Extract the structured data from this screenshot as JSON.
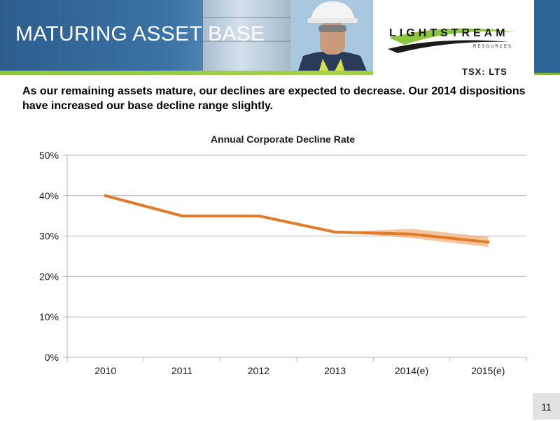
{
  "header": {
    "title": "MATURING ASSET BASE",
    "logo_text": "LIGHTSTREAM",
    "logo_subtext": "RESOURCES",
    "ticker": "TSX: LTS"
  },
  "subtitle": "As our remaining assets mature, our declines are expected to decrease.  Our 2014 dispositions have increased our base decline range slightly.",
  "chart_data": {
    "type": "line",
    "title": "Annual Corporate Decline Rate",
    "categories": [
      "2010",
      "2011",
      "2012",
      "2013",
      "2014(e)",
      "2015(e)"
    ],
    "series": [
      {
        "values": [
          40,
          35,
          35,
          31,
          30.5,
          28.5
        ],
        "color": "#e07b2a"
      }
    ],
    "estimate_band": {
      "categories": [
        "2013",
        "2014(e)",
        "2015(e)"
      ],
      "low": [
        31,
        29.5,
        27.3
      ],
      "high": [
        31,
        31.8,
        29.8
      ],
      "color": "#f2b27e"
    },
    "ylim": [
      0,
      50
    ],
    "yticks": [
      0,
      10,
      20,
      30,
      40,
      50
    ],
    "ytick_labels": [
      "0%",
      "10%",
      "20%",
      "30%",
      "40%",
      "50%"
    ],
    "grid": true,
    "xlabel": "",
    "ylabel": ""
  },
  "page_number": "11"
}
